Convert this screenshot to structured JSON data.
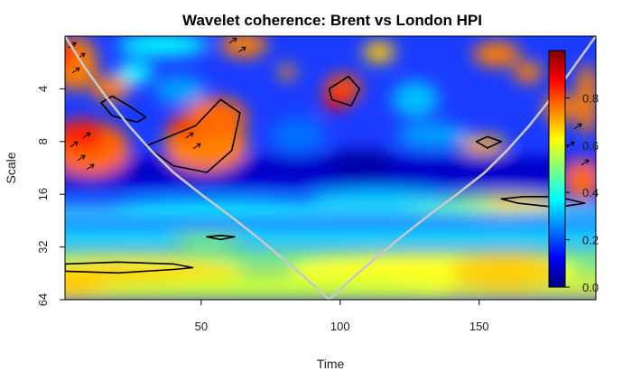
{
  "chart_data": {
    "type": "heatmap",
    "title": "Wavelet coherence: Brent vs London HPI",
    "xlabel": "Time",
    "ylabel": "Scale",
    "xlim": [
      1,
      192
    ],
    "ylim": [
      2,
      64
    ],
    "y_scale": "log2",
    "y_reversed": true,
    "x_ticks": [
      50,
      100,
      150
    ],
    "x_tick_labels": [
      "50",
      "100",
      "150"
    ],
    "y_ticks": [
      4,
      8,
      16,
      32,
      64
    ],
    "y_tick_labels": [
      "4",
      "8",
      "16",
      "32",
      "64"
    ],
    "colorbar": {
      "range": [
        0,
        1
      ],
      "ticks": [
        0.0,
        0.2,
        0.4,
        0.6,
        0.8
      ],
      "tick_labels": [
        "0.0",
        "0.2",
        "0.4",
        "0.6",
        "0.8"
      ],
      "colors": [
        "#00007F",
        "#0000FF",
        "#007FFF",
        "#00FFFF",
        "#7FFF7F",
        "#FFFF00",
        "#FF7F00",
        "#FF0000",
        "#7F0000"
      ]
    },
    "legend_placement": "inside right",
    "significance_regions": [
      {
        "t": [
          30,
          48,
          57,
          64,
          61,
          52,
          40,
          30
        ],
        "scale": [
          8.5,
          6.5,
          4.6,
          5.5,
          9,
          12,
          11,
          8.5
        ]
      },
      {
        "t": [
          14,
          18,
          24,
          30,
          27,
          18,
          14
        ],
        "scale": [
          4.8,
          4.4,
          5,
          5.8,
          6.2,
          5.7,
          4.8
        ]
      },
      {
        "t": [
          96,
          103,
          107,
          104,
          97,
          96
        ],
        "scale": [
          4,
          3.4,
          4,
          5,
          4.6,
          4
        ]
      },
      {
        "t": [
          149,
          153,
          158,
          153,
          149
        ],
        "scale": [
          8,
          7.5,
          8,
          8.7,
          8
        ]
      },
      {
        "t": [
          158,
          166,
          178,
          188,
          178,
          164,
          158
        ],
        "scale": [
          17,
          16.5,
          16.5,
          18,
          19,
          18,
          17
        ]
      },
      {
        "t": [
          1,
          20,
          40,
          47,
          40,
          20,
          1
        ],
        "scale": [
          40,
          39,
          40,
          42,
          43,
          45,
          44
        ]
      },
      {
        "t": [
          52,
          57,
          62,
          57,
          52
        ],
        "scale": [
          28,
          27.5,
          28,
          29,
          28
        ]
      }
    ],
    "cone_of_influence": {
      "t": [
        1,
        8,
        16,
        24,
        32,
        40,
        50,
        60,
        70,
        80,
        90,
        96,
        102,
        112,
        122,
        132,
        142,
        152,
        160,
        168,
        176,
        184,
        192
      ],
      "scale": [
        2,
        3,
        4.5,
        6.5,
        9,
        12,
        16,
        21,
        28,
        38,
        52,
        64,
        52,
        38,
        28,
        21,
        16,
        12,
        9,
        6.5,
        4.5,
        3,
        2
      ]
    }
  }
}
